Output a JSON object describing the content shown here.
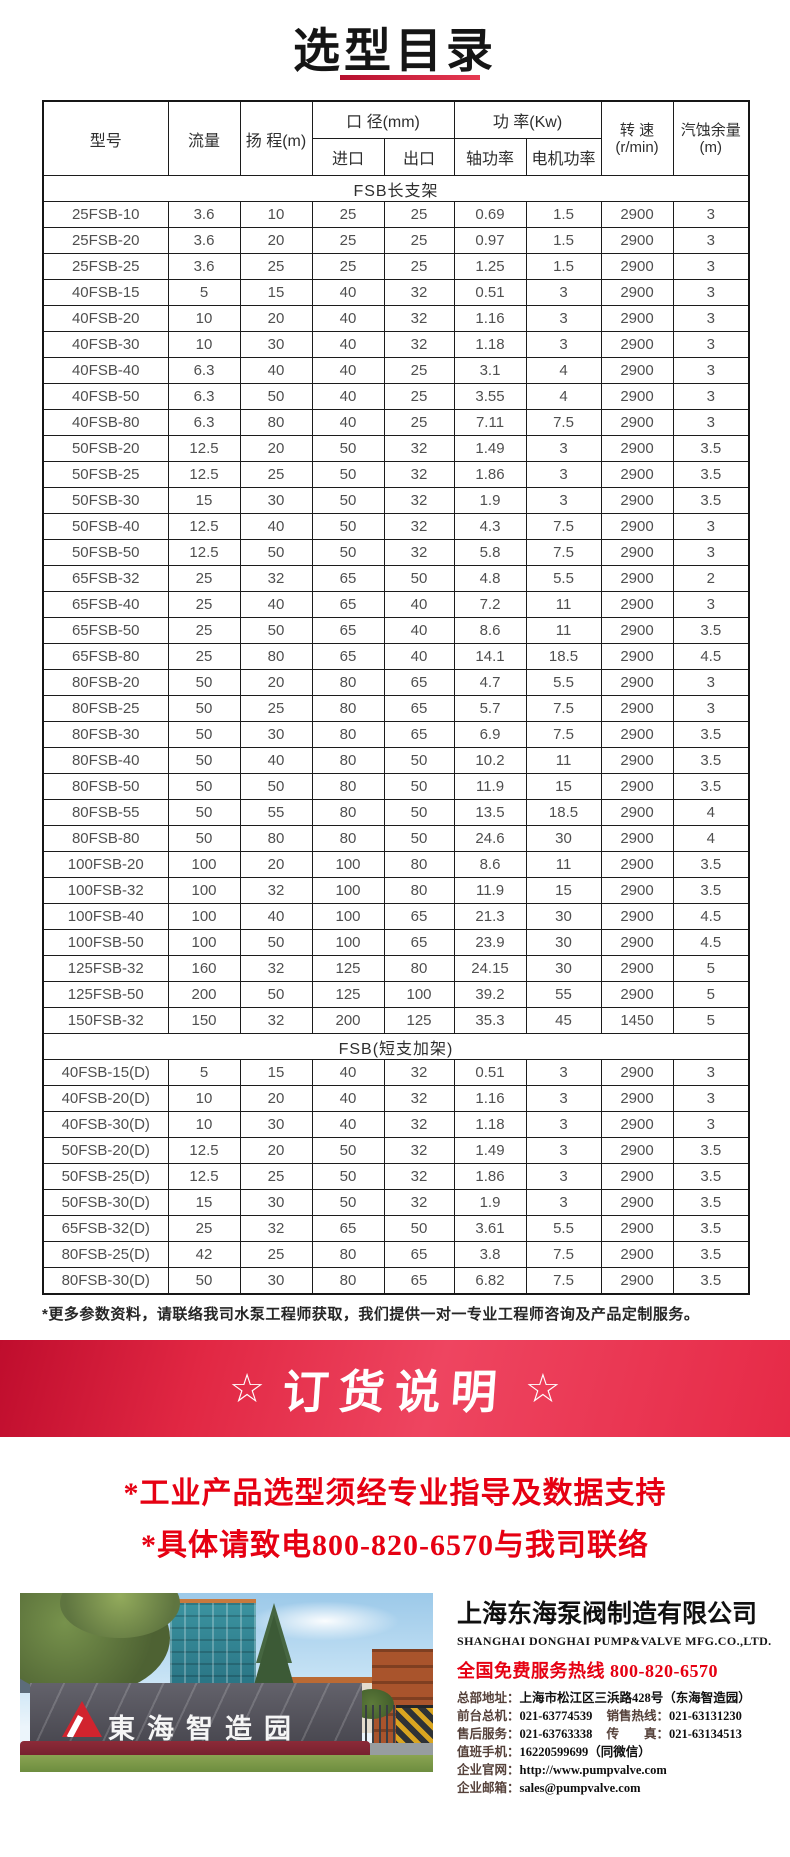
{
  "title": "选型目录",
  "table": {
    "headers": {
      "model": "型号",
      "flow": "流量",
      "head": "扬 程(m)",
      "diameter": "口 径(mm)",
      "inlet": "进口",
      "outlet": "出口",
      "power": "功 率(Kw)",
      "shaft_power": "轴功率",
      "motor_power": "电机功率",
      "speed_line1": "转 速",
      "speed_line2": "(r/min)",
      "npsh_line1": "汽蚀余量",
      "npsh_line2": "(m)"
    },
    "sections": [
      {
        "label": "FSB长支架",
        "rows": [
          [
            "25FSB-10",
            "3.6",
            "10",
            "25",
            "25",
            "0.69",
            "1.5",
            "2900",
            "3"
          ],
          [
            "25FSB-20",
            "3.6",
            "20",
            "25",
            "25",
            "0.97",
            "1.5",
            "2900",
            "3"
          ],
          [
            "25FSB-25",
            "3.6",
            "25",
            "25",
            "25",
            "1.25",
            "1.5",
            "2900",
            "3"
          ],
          [
            "40FSB-15",
            "5",
            "15",
            "40",
            "32",
            "0.51",
            "3",
            "2900",
            "3"
          ],
          [
            "40FSB-20",
            "10",
            "20",
            "40",
            "32",
            "1.16",
            "3",
            "2900",
            "3"
          ],
          [
            "40FSB-30",
            "10",
            "30",
            "40",
            "32",
            "1.18",
            "3",
            "2900",
            "3"
          ],
          [
            "40FSB-40",
            "6.3",
            "40",
            "40",
            "25",
            "3.1",
            "4",
            "2900",
            "3"
          ],
          [
            "40FSB-50",
            "6.3",
            "50",
            "40",
            "25",
            "3.55",
            "4",
            "2900",
            "3"
          ],
          [
            "40FSB-80",
            "6.3",
            "80",
            "40",
            "25",
            "7.11",
            "7.5",
            "2900",
            "3"
          ],
          [
            "50FSB-20",
            "12.5",
            "20",
            "50",
            "32",
            "1.49",
            "3",
            "2900",
            "3.5"
          ],
          [
            "50FSB-25",
            "12.5",
            "25",
            "50",
            "32",
            "1.86",
            "3",
            "2900",
            "3.5"
          ],
          [
            "50FSB-30",
            "15",
            "30",
            "50",
            "32",
            "1.9",
            "3",
            "2900",
            "3.5"
          ],
          [
            "50FSB-40",
            "12.5",
            "40",
            "50",
            "32",
            "4.3",
            "7.5",
            "2900",
            "3"
          ],
          [
            "50FSB-50",
            "12.5",
            "50",
            "50",
            "32",
            "5.8",
            "7.5",
            "2900",
            "3"
          ],
          [
            "65FSB-32",
            "25",
            "32",
            "65",
            "50",
            "4.8",
            "5.5",
            "2900",
            "2"
          ],
          [
            "65FSB-40",
            "25",
            "40",
            "65",
            "40",
            "7.2",
            "11",
            "2900",
            "3"
          ],
          [
            "65FSB-50",
            "25",
            "50",
            "65",
            "40",
            "8.6",
            "11",
            "2900",
            "3.5"
          ],
          [
            "65FSB-80",
            "25",
            "80",
            "65",
            "40",
            "14.1",
            "18.5",
            "2900",
            "4.5"
          ],
          [
            "80FSB-20",
            "50",
            "20",
            "80",
            "65",
            "4.7",
            "5.5",
            "2900",
            "3"
          ],
          [
            "80FSB-25",
            "50",
            "25",
            "80",
            "65",
            "5.7",
            "7.5",
            "2900",
            "3"
          ],
          [
            "80FSB-30",
            "50",
            "30",
            "80",
            "65",
            "6.9",
            "7.5",
            "2900",
            "3.5"
          ],
          [
            "80FSB-40",
            "50",
            "40",
            "80",
            "50",
            "10.2",
            "11",
            "2900",
            "3.5"
          ],
          [
            "80FSB-50",
            "50",
            "50",
            "80",
            "50",
            "11.9",
            "15",
            "2900",
            "3.5"
          ],
          [
            "80FSB-55",
            "50",
            "55",
            "80",
            "50",
            "13.5",
            "18.5",
            "2900",
            "4"
          ],
          [
            "80FSB-80",
            "50",
            "80",
            "80",
            "50",
            "24.6",
            "30",
            "2900",
            "4"
          ],
          [
            "100FSB-20",
            "100",
            "20",
            "100",
            "80",
            "8.6",
            "11",
            "2900",
            "3.5"
          ],
          [
            "100FSB-32",
            "100",
            "32",
            "100",
            "80",
            "11.9",
            "15",
            "2900",
            "3.5"
          ],
          [
            "100FSB-40",
            "100",
            "40",
            "100",
            "65",
            "21.3",
            "30",
            "2900",
            "4.5"
          ],
          [
            "100FSB-50",
            "100",
            "50",
            "100",
            "65",
            "23.9",
            "30",
            "2900",
            "4.5"
          ],
          [
            "125FSB-32",
            "160",
            "32",
            "125",
            "80",
            "24.15",
            "30",
            "2900",
            "5"
          ],
          [
            "125FSB-50",
            "200",
            "50",
            "125",
            "100",
            "39.2",
            "55",
            "2900",
            "5"
          ],
          [
            "150FSB-32",
            "150",
            "32",
            "200",
            "125",
            "35.3",
            "45",
            "1450",
            "5"
          ]
        ]
      },
      {
        "label": "FSB(短支加架)",
        "rows": [
          [
            "40FSB-15(D)",
            "5",
            "15",
            "40",
            "32",
            "0.51",
            "3",
            "2900",
            "3"
          ],
          [
            "40FSB-20(D)",
            "10",
            "20",
            "40",
            "32",
            "1.16",
            "3",
            "2900",
            "3"
          ],
          [
            "40FSB-30(D)",
            "10",
            "30",
            "40",
            "32",
            "1.18",
            "3",
            "2900",
            "3"
          ],
          [
            "50FSB-20(D)",
            "12.5",
            "20",
            "50",
            "32",
            "1.49",
            "3",
            "2900",
            "3.5"
          ],
          [
            "50FSB-25(D)",
            "12.5",
            "25",
            "50",
            "32",
            "1.86",
            "3",
            "2900",
            "3.5"
          ],
          [
            "50FSB-30(D)",
            "15",
            "30",
            "50",
            "32",
            "1.9",
            "3",
            "2900",
            "3.5"
          ],
          [
            "65FSB-32(D)",
            "25",
            "32",
            "65",
            "50",
            "3.61",
            "5.5",
            "2900",
            "3.5"
          ],
          [
            "80FSB-25(D)",
            "42",
            "25",
            "80",
            "65",
            "3.8",
            "7.5",
            "2900",
            "3.5"
          ],
          [
            "80FSB-30(D)",
            "50",
            "30",
            "80",
            "65",
            "6.82",
            "7.5",
            "2900",
            "3.5"
          ]
        ]
      }
    ]
  },
  "note": "*更多参数资料，请联络我司水泵工程师获取，我们提供一对一专业工程师咨询及产品定制服务。",
  "banner": {
    "star_left": "☆",
    "text": "订货说明",
    "star_right": "☆"
  },
  "notices": {
    "line1": "*工业产品选型须经专业指导及数据支持",
    "line2": "*具体请致电800-820-6570与我司联络"
  },
  "footer": {
    "company_cn": "上海东海泵阀制造有限公司",
    "company_en": "SHANGHAI DONGHAI PUMP&VALVE MFG.CO.,LTD.",
    "hotline": "全国免费服务热线  800-820-6570",
    "contacts": [
      [
        {
          "label": "总部地址：",
          "value": "上海市松江区三浜路428号（东海智造园）"
        }
      ],
      [
        {
          "label": "前台总机：",
          "value": "021-63774539"
        },
        {
          "label": "销售热线：",
          "value": "021-63131230"
        }
      ],
      [
        {
          "label": "售后服务：",
          "value": "021-63763338"
        },
        {
          "label": "传　　真：",
          "value": "021-63134513"
        }
      ],
      [
        {
          "label": "值班手机：",
          "value": "16220599699（同微信）"
        }
      ],
      [
        {
          "label": "企业官网：",
          "value": "http://www.pumpvalve.com"
        }
      ],
      [
        {
          "label": "企业邮箱：",
          "value": "sales@pumpvalve.com"
        }
      ]
    ],
    "photo_sign_text": "東海智造园"
  },
  "colors": {
    "accent_red": "#e60012",
    "banner_red_start": "#bf0d2d",
    "banner_red_end": "#e62a47",
    "table_border": "#1c1c1c",
    "logo_red": "#d1242e"
  }
}
